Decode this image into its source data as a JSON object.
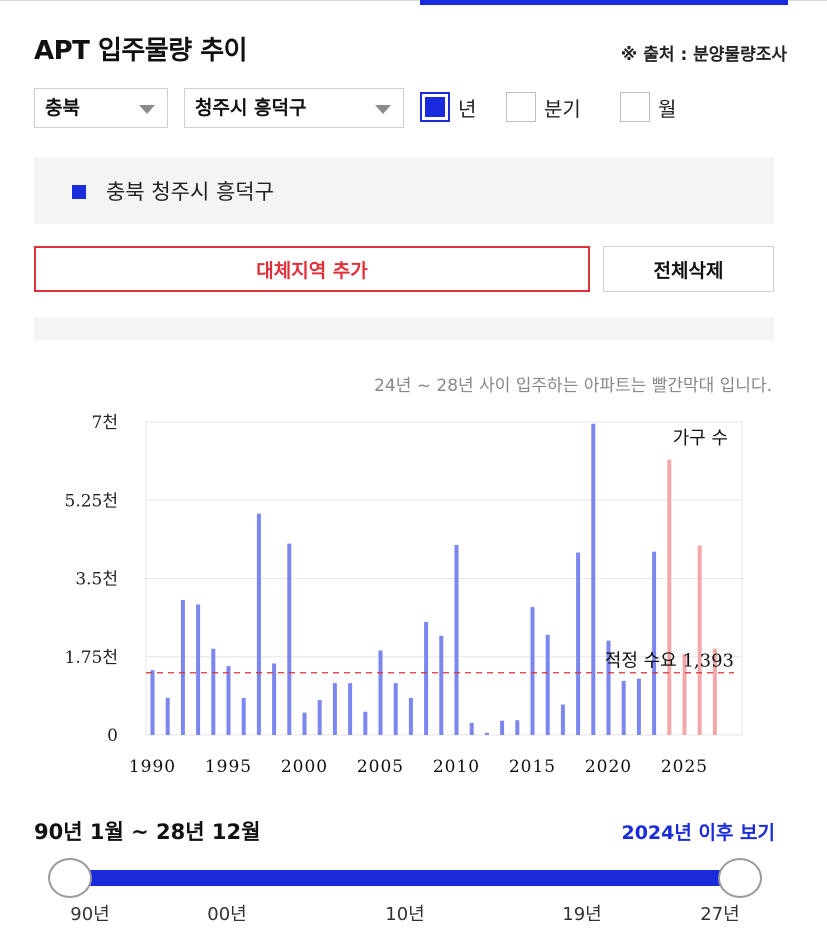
{
  "header": {
    "title": "APT 입주물량 추이",
    "source": "※ 출처 : 분양물량조사"
  },
  "filters": {
    "province": "충북",
    "city": "청주시 흥덕구",
    "period_options": [
      {
        "label": "년",
        "checked": true
      },
      {
        "label": "분기",
        "checked": false
      },
      {
        "label": "월",
        "checked": false
      }
    ]
  },
  "legend": {
    "region": "충북 청주시 흥덕구",
    "color": "#1a2bdc"
  },
  "buttons": {
    "add_region": "대체지역 추가",
    "delete_all": "전체삭제"
  },
  "chart": {
    "note": "24년 ~ 28년 사이 입주하는 아파트는 빨간막대 입니다."
  },
  "chart_data": {
    "type": "bar",
    "unit_label": "가구 수",
    "y_ticks": [
      "0",
      "1.75천",
      "3.5천",
      "5.25천",
      "7천"
    ],
    "ylim": [
      0,
      7000
    ],
    "x_tick_labels": [
      "1990",
      "1995",
      "2000",
      "2005",
      "2010",
      "2015",
      "2020",
      "2025"
    ],
    "reference_line": {
      "label": "적정 수요 1,393",
      "value": 1393
    },
    "grid": true,
    "bar_color_past": "#7b86ee",
    "bar_color_future": "#f2a8a8",
    "years": [
      1990,
      1991,
      1992,
      1993,
      1994,
      1995,
      1996,
      1997,
      1998,
      1999,
      2000,
      2001,
      2002,
      2003,
      2004,
      2005,
      2006,
      2007,
      2008,
      2009,
      2010,
      2011,
      2012,
      2013,
      2014,
      2015,
      2016,
      2017,
      2018,
      2019,
      2020,
      2021,
      2022,
      2023,
      2024,
      2025,
      2026,
      2027
    ],
    "values": [
      1450,
      830,
      3020,
      2920,
      1930,
      1540,
      830,
      4950,
      1600,
      4280,
      500,
      780,
      1160,
      1160,
      520,
      1890,
      1160,
      830,
      2530,
      2220,
      4250,
      270,
      50,
      320,
      330,
      2860,
      2240,
      680,
      4080,
      6960,
      2110,
      1210,
      1260,
      4100,
      6160,
      1810,
      4240,
      1930
    ],
    "future_from_year": 2024
  },
  "range": {
    "label": "90년 1월 ~ 28년 12월",
    "after_link": "2024년 이후 보기",
    "ticks": [
      "90년",
      "00년",
      "10년",
      "19년",
      "27년"
    ]
  }
}
